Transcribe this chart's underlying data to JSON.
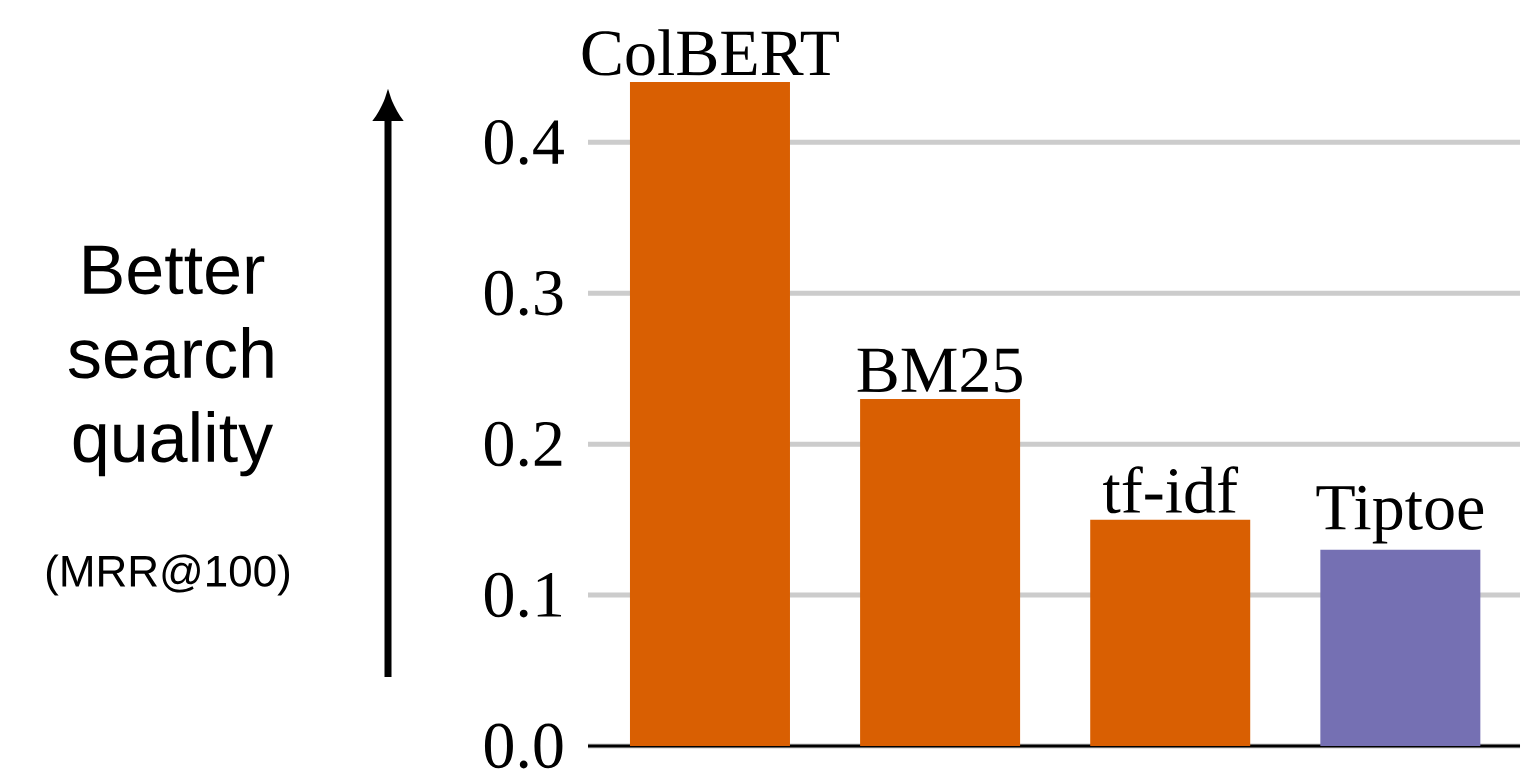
{
  "chart_data": {
    "type": "bar",
    "ylabel": "Better search quality",
    "annotations": [
      "(MRR@100)"
    ],
    "categories": [
      "ColBERT",
      "BM25",
      "tf-idf",
      "Tiptoe"
    ],
    "values": [
      0.44,
      0.23,
      0.15,
      0.13
    ],
    "colors": [
      "#d95f02",
      "#d95f02",
      "#d95f02",
      "#7570b3"
    ],
    "ylim": [
      0,
      0.44
    ],
    "yticks": [
      {
        "value": 0,
        "label": "0.0"
      },
      0.1,
      0.2,
      0.3,
      0.4
    ],
    "grid": "y"
  }
}
